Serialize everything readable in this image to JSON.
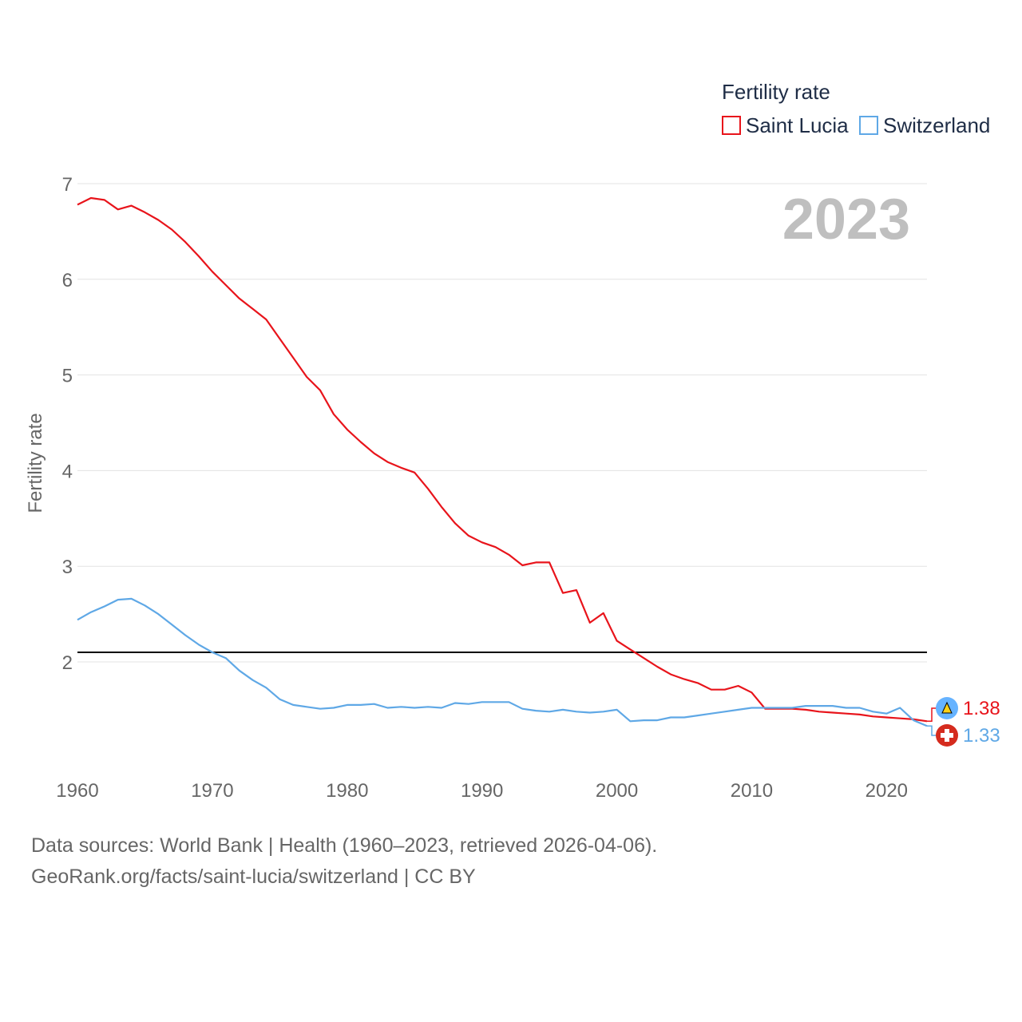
{
  "chart_data": {
    "type": "line",
    "title": "Fertility rate",
    "year_label": "2023",
    "ylabel": "Fertility rate",
    "xlabel": "",
    "xlim": [
      1960,
      2023
    ],
    "ylim": [
      1,
      7
    ],
    "x_ticks": [
      1960,
      1970,
      1980,
      1990,
      2000,
      2010,
      2020
    ],
    "y_ticks": [
      2,
      3,
      4,
      5,
      6,
      7
    ],
    "reference_line": 2.1,
    "x": [
      1960,
      1961,
      1962,
      1963,
      1964,
      1965,
      1966,
      1967,
      1968,
      1969,
      1970,
      1971,
      1972,
      1973,
      1974,
      1975,
      1976,
      1977,
      1978,
      1979,
      1980,
      1981,
      1982,
      1983,
      1984,
      1985,
      1986,
      1987,
      1988,
      1989,
      1990,
      1991,
      1992,
      1993,
      1994,
      1995,
      1996,
      1997,
      1998,
      1999,
      2000,
      2001,
      2002,
      2003,
      2004,
      2005,
      2006,
      2007,
      2008,
      2009,
      2010,
      2011,
      2012,
      2013,
      2014,
      2015,
      2016,
      2017,
      2018,
      2019,
      2020,
      2021,
      2022,
      2023
    ],
    "series": [
      {
        "name": "Saint Lucia",
        "color": "#e8141b",
        "end_label": "1.38",
        "values": [
          6.78,
          6.85,
          6.83,
          6.73,
          6.77,
          6.7,
          6.62,
          6.52,
          6.39,
          6.24,
          6.08,
          5.94,
          5.8,
          5.69,
          5.58,
          5.38,
          5.18,
          4.98,
          4.84,
          4.59,
          4.43,
          4.3,
          4.18,
          4.09,
          4.03,
          3.98,
          3.81,
          3.62,
          3.45,
          3.32,
          3.25,
          3.2,
          3.12,
          3.01,
          3.04,
          3.04,
          2.72,
          2.75,
          2.41,
          2.51,
          2.22,
          2.13,
          2.04,
          1.95,
          1.87,
          1.82,
          1.78,
          1.71,
          1.71,
          1.75,
          1.68,
          1.51,
          1.51,
          1.51,
          1.5,
          1.48,
          1.47,
          1.46,
          1.45,
          1.43,
          1.42,
          1.41,
          1.4,
          1.38
        ]
      },
      {
        "name": "Switzerland",
        "color": "#5fa8e6",
        "end_label": "1.33",
        "values": [
          2.44,
          2.52,
          2.58,
          2.65,
          2.66,
          2.59,
          2.5,
          2.39,
          2.28,
          2.18,
          2.1,
          2.04,
          1.91,
          1.81,
          1.73,
          1.61,
          1.55,
          1.53,
          1.51,
          1.52,
          1.55,
          1.55,
          1.56,
          1.52,
          1.53,
          1.52,
          1.53,
          1.52,
          1.57,
          1.56,
          1.58,
          1.58,
          1.58,
          1.51,
          1.49,
          1.48,
          1.5,
          1.48,
          1.47,
          1.48,
          1.5,
          1.38,
          1.39,
          1.39,
          1.42,
          1.42,
          1.44,
          1.46,
          1.48,
          1.5,
          1.52,
          1.52,
          1.52,
          1.52,
          1.54,
          1.54,
          1.54,
          1.52,
          1.52,
          1.48,
          1.46,
          1.52,
          1.39,
          1.33
        ]
      }
    ]
  },
  "source": {
    "line1": "Data sources: World Bank | Health (1960–2023, retrieved 2026-04-06).",
    "line2": "GeoRank.org/facts/saint-lucia/switzerland | CC BY"
  }
}
